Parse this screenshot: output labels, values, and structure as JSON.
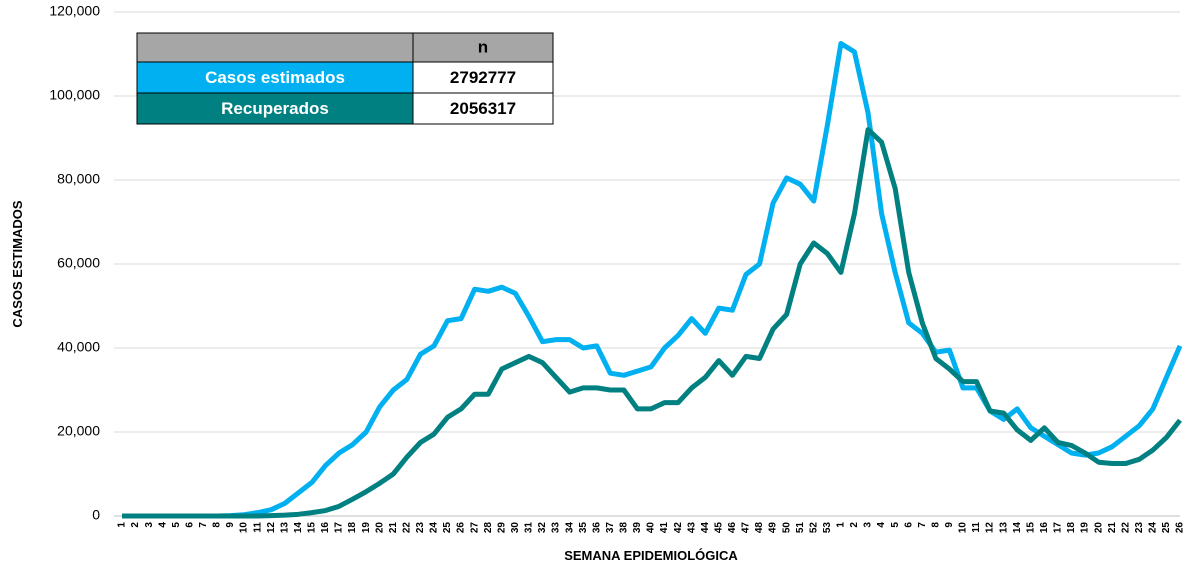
{
  "chart_data": {
    "type": "line",
    "x_label": "SEMANA EPIDEMIOLÓGICA",
    "y_label": "CASOS ESTIMADOS",
    "categories": [
      "1",
      "2",
      "3",
      "4",
      "5",
      "6",
      "7",
      "8",
      "9",
      "10",
      "11",
      "12",
      "13",
      "14",
      "15",
      "16",
      "17",
      "18",
      "19",
      "20",
      "21",
      "22",
      "23",
      "24",
      "25",
      "26",
      "27",
      "28",
      "29",
      "30",
      "31",
      "32",
      "33",
      "34",
      "35",
      "36",
      "37",
      "38",
      "39",
      "40",
      "41",
      "42",
      "43",
      "44",
      "45",
      "46",
      "47",
      "48",
      "49",
      "50",
      "51",
      "52",
      "53",
      "1",
      "2",
      "3",
      "4",
      "5",
      "6",
      "7",
      "8",
      "9",
      "10",
      "11",
      "12",
      "13",
      "14",
      "15",
      "16",
      "17",
      "18",
      "19",
      "20",
      "21",
      "22",
      "23",
      "24",
      "25",
      "26"
    ],
    "series": [
      {
        "name": "Casos estimados",
        "color": "#00b0f0",
        "total": 2792777,
        "values": [
          0,
          0,
          0,
          0,
          0,
          0,
          0,
          0,
          100,
          300,
          800,
          1500,
          3000,
          5500,
          8000,
          12000,
          15000,
          17000,
          20000,
          26000,
          30000,
          32500,
          38500,
          40500,
          46500,
          47000,
          54000,
          53500,
          54500,
          53000,
          47500,
          41500,
          42000,
          42000,
          40000,
          40500,
          34000,
          33500,
          34500,
          35500,
          40000,
          43000,
          47000,
          43500,
          49500,
          49000,
          57500,
          60000,
          74500,
          80500,
          79000,
          75000,
          93000,
          112500,
          110500,
          96000,
          72000,
          58000,
          46000,
          43500,
          39000,
          39500,
          30500,
          30500,
          25000,
          23000,
          25500,
          21000,
          19000,
          17000,
          15000,
          14500,
          15000,
          16500,
          19000,
          21500,
          25500,
          33000,
          40500
        ]
      },
      {
        "name": "Recuperados",
        "color": "#008080",
        "total": 2056317,
        "values": [
          0,
          0,
          0,
          0,
          0,
          0,
          0,
          0,
          0,
          0,
          0,
          100,
          200,
          400,
          800,
          1300,
          2300,
          4000,
          5800,
          7800,
          10000,
          14000,
          17500,
          19500,
          23500,
          25500,
          29000,
          29000,
          35000,
          36500,
          38000,
          36500,
          33000,
          29500,
          30500,
          30500,
          30000,
          30000,
          25500,
          25500,
          27000,
          27000,
          30500,
          33000,
          37000,
          33500,
          38000,
          37500,
          44500,
          48000,
          60000,
          65000,
          62500,
          58000,
          72000,
          92000,
          89000,
          78000,
          58000,
          46000,
          37500,
          35000,
          32000,
          32000,
          25000,
          24500,
          20500,
          18000,
          21000,
          17500,
          16800,
          15000,
          12800,
          12500,
          12500,
          13500,
          15700,
          18700,
          22800
        ]
      }
    ],
    "table_header": "n",
    "ylim": [
      0,
      120000
    ],
    "yticks": [
      0,
      {
        "value": 20000,
        "label": "20,000"
      },
      {
        "value": 40000,
        "label": "40,000"
      },
      {
        "value": 60000,
        "label": "60,000"
      },
      {
        "value": 80000,
        "label": "80,000"
      },
      {
        "value": 100000,
        "label": "100,000"
      },
      {
        "value": 120000,
        "label": "120,000"
      }
    ],
    "grid": true
  }
}
